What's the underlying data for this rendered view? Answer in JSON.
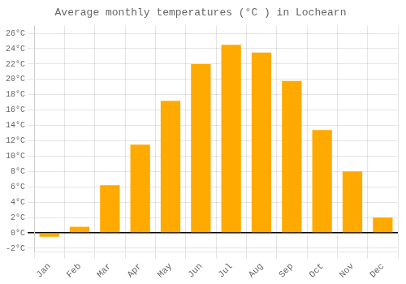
{
  "chart_data": {
    "type": "bar",
    "title": "Average monthly temperatures (°C ) in Lochearn",
    "categories": [
      "Jan",
      "Feb",
      "Mar",
      "Apr",
      "May",
      "Jun",
      "Jul",
      "Aug",
      "Sep",
      "Oct",
      "Nov",
      "Dec"
    ],
    "values": [
      -0.5,
      0.8,
      6.2,
      11.5,
      17.2,
      22.0,
      24.5,
      23.5,
      19.8,
      13.4,
      8.0,
      2.0
    ],
    "color": "#FFAA00",
    "ylim": [
      -2.5,
      27
    ],
    "yticks": [
      {
        "value": -2,
        "label": "-2°C"
      },
      {
        "value": 0,
        "label": "0°C"
      },
      {
        "value": 2,
        "label": "2°C"
      },
      {
        "value": 4,
        "label": "4°C"
      },
      {
        "value": 6,
        "label": "6°C"
      },
      {
        "value": 8,
        "label": "8°C"
      },
      {
        "value": 10,
        "label": "10°C"
      },
      {
        "value": 12,
        "label": "12°C"
      },
      {
        "value": 14,
        "label": "14°C"
      },
      {
        "value": 16,
        "label": "16°C"
      },
      {
        "value": 18,
        "label": "18°C"
      },
      {
        "value": 20,
        "label": "20°C"
      },
      {
        "value": 22,
        "label": "22°C"
      },
      {
        "value": 24,
        "label": "24°C"
      },
      {
        "value": 26,
        "label": "26°C"
      }
    ],
    "grid": true
  }
}
